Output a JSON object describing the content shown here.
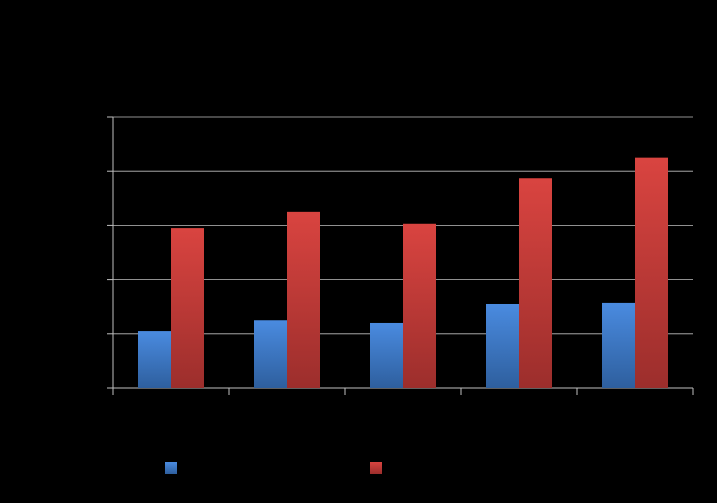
{
  "chart_data": {
    "type": "bar",
    "categories": [
      "",
      "",
      "",
      "",
      ""
    ],
    "series": [
      {
        "color": "#3b78c8",
        "values": [
          1.05,
          1.25,
          1.2,
          1.55,
          1.57
        ]
      },
      {
        "color": "#c8383a",
        "values": [
          2.95,
          3.25,
          3.03,
          3.87,
          4.25
        ]
      }
    ],
    "ylim": [
      0,
      5
    ],
    "yticks": [
      0,
      1,
      2,
      3,
      4,
      5
    ],
    "grid": true,
    "legend": "bottom",
    "colors": {
      "background": "#000000",
      "axis": "#bfbfbf",
      "gridline": "#bfbfbf"
    }
  }
}
